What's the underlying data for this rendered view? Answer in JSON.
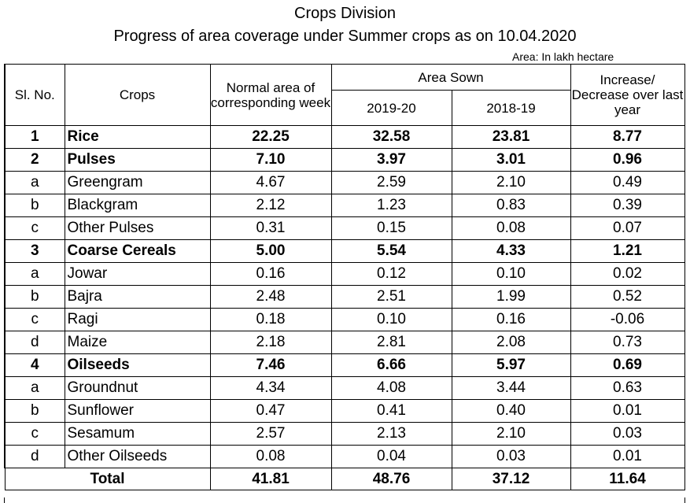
{
  "header": {
    "title": "Crops Division",
    "subtitle": "Progress of area coverage under Summer crops as on 10.04.2020",
    "unit": "Area: In lakh hectare"
  },
  "columns": {
    "slno": "Sl. No.",
    "crops": "Crops",
    "normal": "Normal area of corresponding week",
    "area_sown": "Area Sown",
    "y2019": "2019-20",
    "y2018": "2018-19",
    "change": "Increase/ Decrease over last year"
  },
  "rows": [
    {
      "sl": "1",
      "crop": "Rice",
      "normal": "22.25",
      "y2019": "32.58",
      "y2018": "23.81",
      "change": "8.77",
      "bold": true
    },
    {
      "sl": "2",
      "crop": "Pulses",
      "normal": "7.10",
      "y2019": "3.97",
      "y2018": "3.01",
      "change": "0.96",
      "bold": true
    },
    {
      "sl": "a",
      "crop": "Greengram",
      "normal": "4.67",
      "y2019": "2.59",
      "y2018": "2.10",
      "change": "0.49",
      "bold": false
    },
    {
      "sl": "b",
      "crop": "Blackgram",
      "normal": "2.12",
      "y2019": "1.23",
      "y2018": "0.83",
      "change": "0.39",
      "bold": false
    },
    {
      "sl": "c",
      "crop": "Other Pulses",
      "normal": "0.31",
      "y2019": "0.15",
      "y2018": "0.08",
      "change": "0.07",
      "bold": false
    },
    {
      "sl": "3",
      "crop": "Coarse Cereals",
      "normal": "5.00",
      "y2019": "5.54",
      "y2018": "4.33",
      "change": "1.21",
      "bold": true
    },
    {
      "sl": "a",
      "crop": "Jowar",
      "normal": "0.16",
      "y2019": "0.12",
      "y2018": "0.10",
      "change": "0.02",
      "bold": false
    },
    {
      "sl": "b",
      "crop": "Bajra",
      "normal": "2.48",
      "y2019": "2.51",
      "y2018": "1.99",
      "change": "0.52",
      "bold": false
    },
    {
      "sl": "c",
      "crop": "Ragi",
      "normal": "0.18",
      "y2019": "0.10",
      "y2018": "0.16",
      "change": "-0.06",
      "bold": false
    },
    {
      "sl": "d",
      "crop": "Maize",
      "normal": "2.18",
      "y2019": "2.81",
      "y2018": "2.08",
      "change": "0.73",
      "bold": false
    },
    {
      "sl": "4",
      "crop": "Oilseeds",
      "normal": "7.46",
      "y2019": "6.66",
      "y2018": "5.97",
      "change": "0.69",
      "bold": true
    },
    {
      "sl": "a",
      "crop": "Groundnut",
      "normal": "4.34",
      "y2019": "4.08",
      "y2018": "3.44",
      "change": "0.63",
      "bold": false
    },
    {
      "sl": "b",
      "crop": "Sunflower",
      "normal": "0.47",
      "y2019": "0.41",
      "y2018": "0.40",
      "change": "0.01",
      "bold": false
    },
    {
      "sl": "c",
      "crop": "Sesamum",
      "normal": "2.57",
      "y2019": "2.13",
      "y2018": "2.10",
      "change": "0.03",
      "bold": false
    },
    {
      "sl": "d",
      "crop": "Other Oilseeds",
      "normal": "0.08",
      "y2019": "0.04",
      "y2018": "0.03",
      "change": "0.01",
      "bold": false
    }
  ],
  "total": {
    "label": "Total",
    "normal": "41.81",
    "y2019": "48.76",
    "y2018": "37.12",
    "change": "11.64"
  }
}
